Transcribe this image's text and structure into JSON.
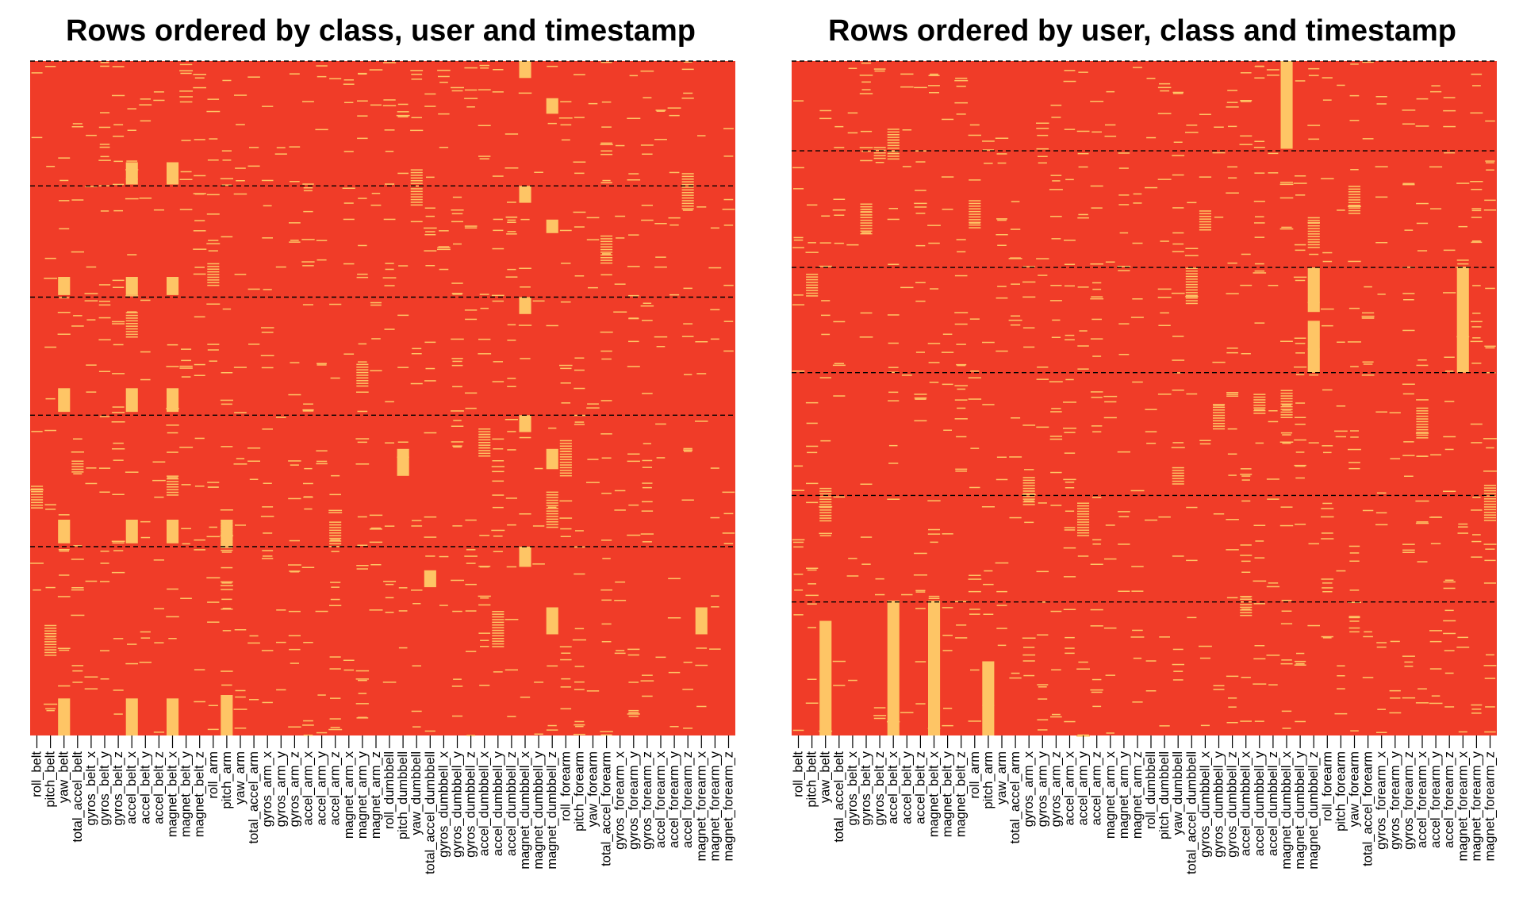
{
  "chart_data": [
    {
      "type": "heatmap",
      "title": "Rows ordered by class, user and timestamp",
      "columns": [
        "roll_belt",
        "pitch_belt",
        "yaw_belt",
        "total_accel_belt",
        "gyros_belt_x",
        "gyros_belt_y",
        "gyros_belt_z",
        "accel_belt_x",
        "accel_belt_y",
        "accel_belt_z",
        "magnet_belt_x",
        "magnet_belt_y",
        "magnet_belt_z",
        "roll_arm",
        "pitch_arm",
        "yaw_arm",
        "total_accel_arm",
        "gyros_arm_x",
        "gyros_arm_y",
        "gyros_arm_z",
        "accel_arm_x",
        "accel_arm_y",
        "accel_arm_z",
        "magnet_arm_x",
        "magnet_arm_y",
        "magnet_arm_z",
        "roll_dumbbell",
        "pitch_dumbbell",
        "yaw_dumbbell",
        "total_accel_dumbbell",
        "gyros_dumbbell_x",
        "gyros_dumbbell_y",
        "gyros_dumbbell_z",
        "accel_dumbbell_x",
        "accel_dumbbell_y",
        "accel_dumbbell_z",
        "magnet_dumbbell_x",
        "magnet_dumbbell_y",
        "magnet_dumbbell_z",
        "roll_forearm",
        "pitch_forearm",
        "yaw_forearm",
        "total_accel_forearm",
        "gyros_forearm_x",
        "gyros_forearm_y",
        "gyros_forearm_z",
        "accel_forearm_x",
        "accel_forearm_y",
        "accel_forearm_z",
        "magnet_forearm_x",
        "magnet_forearm_y",
        "magnet_forearm_z"
      ],
      "row_range": [
        0,
        1
      ],
      "group_boundaries": [
        0.185,
        0.35,
        0.525,
        0.72
      ],
      "base_color": "#f03c28",
      "highlight_color": "#fec565",
      "blocks": [
        {
          "col": 36,
          "y": [
            0.0,
            0.025
          ]
        },
        {
          "col": 38,
          "y": [
            0.055,
            0.078
          ]
        },
        {
          "col": 7,
          "y": [
            0.15,
            0.183
          ]
        },
        {
          "col": 10,
          "y": [
            0.15,
            0.183
          ]
        },
        {
          "col": 36,
          "y": [
            0.185,
            0.21
          ]
        },
        {
          "col": 38,
          "y": [
            0.235,
            0.255
          ]
        },
        {
          "col": 2,
          "y": [
            0.32,
            0.347
          ]
        },
        {
          "col": 7,
          "y": [
            0.32,
            0.347
          ]
        },
        {
          "col": 10,
          "y": [
            0.32,
            0.347
          ]
        },
        {
          "col": 36,
          "y": [
            0.35,
            0.375
          ]
        },
        {
          "col": 2,
          "y": [
            0.485,
            0.52
          ]
        },
        {
          "col": 7,
          "y": [
            0.485,
            0.52
          ]
        },
        {
          "col": 10,
          "y": [
            0.485,
            0.52
          ]
        },
        {
          "col": 36,
          "y": [
            0.525,
            0.55
          ]
        },
        {
          "col": 38,
          "y": [
            0.575,
            0.605
          ]
        },
        {
          "col": 27,
          "y": [
            0.575,
            0.615
          ]
        },
        {
          "col": 2,
          "y": [
            0.68,
            0.715
          ]
        },
        {
          "col": 7,
          "y": [
            0.68,
            0.715
          ]
        },
        {
          "col": 10,
          "y": [
            0.68,
            0.715
          ]
        },
        {
          "col": 14,
          "y": [
            0.68,
            0.72
          ]
        },
        {
          "col": 36,
          "y": [
            0.72,
            0.75
          ]
        },
        {
          "col": 29,
          "y": [
            0.755,
            0.78
          ]
        },
        {
          "col": 38,
          "y": [
            0.81,
            0.85
          ]
        },
        {
          "col": 49,
          "y": [
            0.81,
            0.85
          ]
        },
        {
          "col": 2,
          "y": [
            0.945,
            1.0
          ]
        },
        {
          "col": 7,
          "y": [
            0.945,
            1.0
          ]
        },
        {
          "col": 10,
          "y": [
            0.945,
            1.0
          ]
        },
        {
          "col": 14,
          "y": [
            0.94,
            1.0
          ]
        }
      ]
    },
    {
      "type": "heatmap",
      "title": "Rows ordered by user, class and timestamp",
      "columns": [
        "roll_belt",
        "pitch_belt",
        "yaw_belt",
        "total_accel_belt",
        "gyros_belt_x",
        "gyros_belt_y",
        "gyros_belt_z",
        "accel_belt_x",
        "accel_belt_y",
        "accel_belt_z",
        "magnet_belt_x",
        "magnet_belt_y",
        "magnet_belt_z",
        "roll_arm",
        "pitch_arm",
        "yaw_arm",
        "total_accel_arm",
        "gyros_arm_x",
        "gyros_arm_y",
        "gyros_arm_z",
        "accel_arm_x",
        "accel_arm_y",
        "accel_arm_z",
        "magnet_arm_x",
        "magnet_arm_y",
        "magnet_arm_z",
        "roll_dumbbell",
        "pitch_dumbbell",
        "yaw_dumbbell",
        "total_accel_dumbbell",
        "gyros_dumbbell_x",
        "gyros_dumbbell_y",
        "gyros_dumbbell_z",
        "accel_dumbbell_x",
        "accel_dumbbell_y",
        "accel_dumbbell_z",
        "magnet_dumbbell_x",
        "magnet_dumbbell_y",
        "magnet_dumbbell_z",
        "roll_forearm",
        "pitch_forearm",
        "yaw_forearm",
        "total_accel_forearm",
        "gyros_forearm_x",
        "gyros_forearm_y",
        "gyros_forearm_z",
        "accel_forearm_x",
        "accel_forearm_y",
        "accel_forearm_z",
        "magnet_forearm_x",
        "magnet_forearm_y",
        "magnet_forearm_z"
      ],
      "row_range": [
        0,
        1
      ],
      "group_boundaries": [
        0.133,
        0.306,
        0.462,
        0.644,
        0.802
      ],
      "base_color": "#f03c28",
      "highlight_color": "#fec565",
      "blocks": [
        {
          "col": 36,
          "y": [
            0.0,
            0.13
          ]
        },
        {
          "col": 38,
          "y": [
            0.306,
            0.372
          ]
        },
        {
          "col": 38,
          "y": [
            0.385,
            0.462
          ]
        },
        {
          "col": 49,
          "y": [
            0.306,
            0.462
          ]
        },
        {
          "col": 2,
          "y": [
            0.83,
            1.0
          ]
        },
        {
          "col": 7,
          "y": [
            0.8,
            1.0
          ]
        },
        {
          "col": 10,
          "y": [
            0.8,
            1.0
          ]
        },
        {
          "col": 14,
          "y": [
            0.89,
            1.0
          ]
        }
      ]
    }
  ]
}
